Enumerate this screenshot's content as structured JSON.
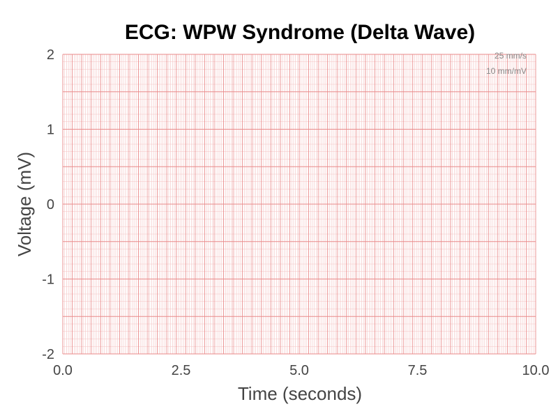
{
  "chart_data": {
    "type": "line",
    "title": "ECG: WPW Syndrome (Delta Wave)",
    "xlabel": "Time (seconds)",
    "ylabel": "Voltage (mV)",
    "xlim": [
      0,
      10
    ],
    "ylim": [
      -2,
      2
    ],
    "x_ticks": [
      0,
      2.5,
      5,
      7.5,
      10
    ],
    "x_tick_labels": [
      "0.0",
      "2.5",
      "5.0",
      "7.5",
      "10.0"
    ],
    "y_ticks": [
      -2,
      -1,
      0,
      1,
      2
    ],
    "y_tick_labels": [
      "-2",
      "-1",
      "0",
      "1",
      "2"
    ],
    "grid": true,
    "grid_minor_step_s": 0.04,
    "grid_major_step_s": 0.2,
    "grid_minor_step_mv": 0.1,
    "grid_major_step_mv": 0.5,
    "annotations": [
      "25 mm/s",
      "10 mm/mV"
    ],
    "series": [],
    "colors": {
      "grid_minor": "#f4c2c2",
      "grid_major": "#e98a8a",
      "text": "#444444",
      "annotation": "#888888"
    }
  }
}
